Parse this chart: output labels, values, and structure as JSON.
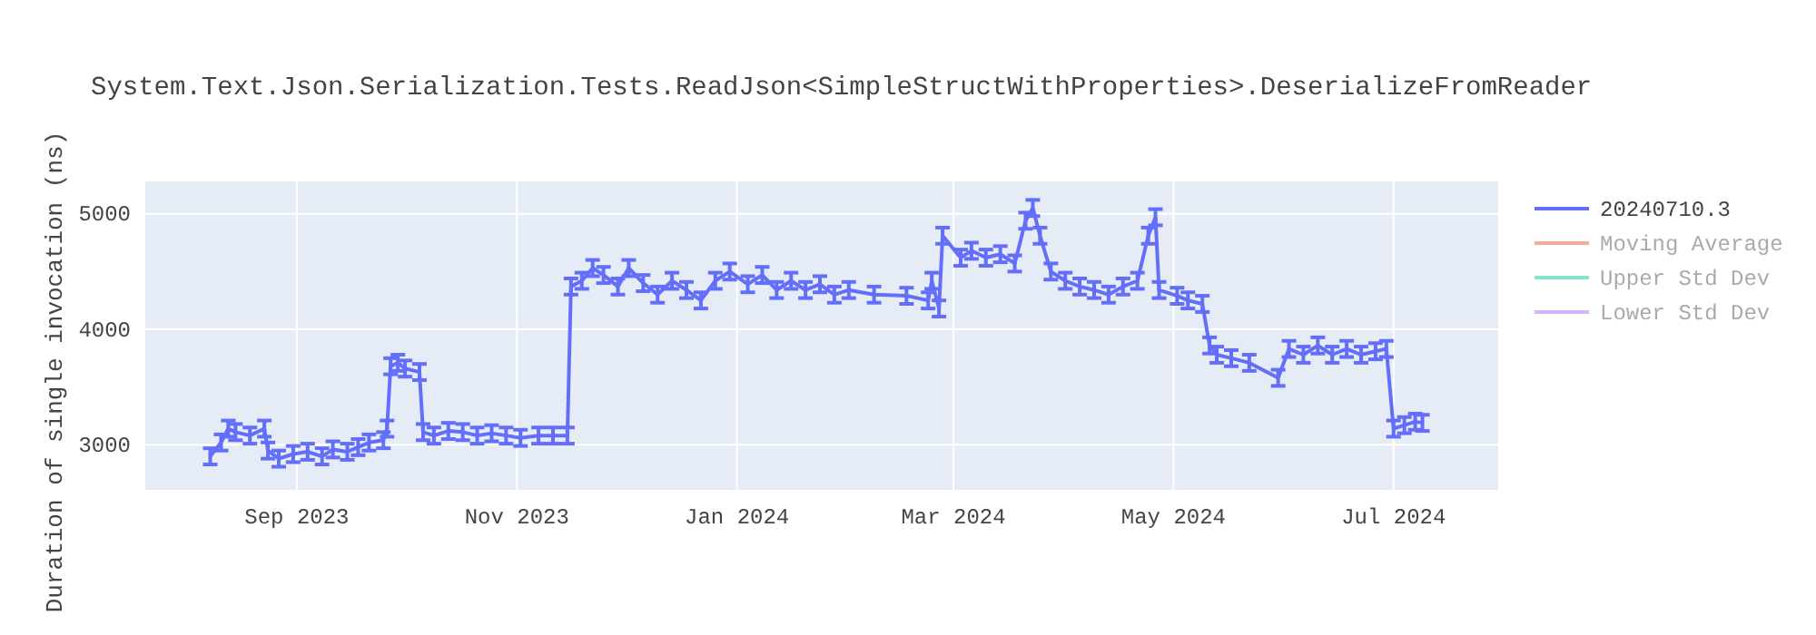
{
  "chart_data": {
    "type": "line",
    "title": "System.Text.Json.Serialization.Tests.ReadJson<SimpleStructWithProperties>.DeserializeFromReader",
    "ylabel": "Duration of single invocation (ns)",
    "x": [
      "2023-08-08",
      "2023-08-11",
      "2023-08-13",
      "2023-08-15",
      "2023-08-19",
      "2023-08-23",
      "2023-08-24",
      "2023-08-27",
      "2023-08-31",
      "2023-09-04",
      "2023-09-08",
      "2023-09-11",
      "2023-09-15",
      "2023-09-18",
      "2023-09-21",
      "2023-09-25",
      "2023-09-26",
      "2023-09-27",
      "2023-09-29",
      "2023-10-01",
      "2023-10-05",
      "2023-10-06",
      "2023-10-09",
      "2023-10-13",
      "2023-10-17",
      "2023-10-21",
      "2023-10-25",
      "2023-10-29",
      "2023-11-02",
      "2023-11-07",
      "2023-11-11",
      "2023-11-15",
      "2023-11-16",
      "2023-11-19",
      "2023-11-22",
      "2023-11-25",
      "2023-11-29",
      "2023-12-02",
      "2023-12-06",
      "2023-12-10",
      "2023-12-14",
      "2023-12-18",
      "2023-12-22",
      "2023-12-26",
      "2023-12-30",
      "2024-01-04",
      "2024-01-08",
      "2024-01-12",
      "2024-01-16",
      "2024-01-20",
      "2024-01-24",
      "2024-01-28",
      "2024-02-01",
      "2024-02-08",
      "2024-02-17",
      "2024-02-23",
      "2024-02-24",
      "2024-02-26",
      "2024-02-27",
      "2024-03-03",
      "2024-03-06",
      "2024-03-10",
      "2024-03-14",
      "2024-03-18",
      "2024-03-21",
      "2024-03-23",
      "2024-03-25",
      "2024-03-28",
      "2024-04-01",
      "2024-04-05",
      "2024-04-09",
      "2024-04-13",
      "2024-04-17",
      "2024-04-21",
      "2024-04-24",
      "2024-04-26",
      "2024-04-27",
      "2024-05-02",
      "2024-05-05",
      "2024-05-09",
      "2024-05-11",
      "2024-05-13",
      "2024-05-17",
      "2024-05-22",
      "2024-05-30",
      "2024-06-02",
      "2024-06-06",
      "2024-06-10",
      "2024-06-14",
      "2024-06-18",
      "2024-06-22",
      "2024-06-26",
      "2024-06-29",
      "2024-07-01",
      "2024-07-04",
      "2024-07-07",
      "2024-07-09"
    ],
    "series": [
      {
        "name": "20240710.3",
        "color": "#636efa",
        "values": [
          2900,
          3020,
          3140,
          3110,
          3080,
          3140,
          2950,
          2880,
          2920,
          2940,
          2900,
          2960,
          2940,
          2980,
          3020,
          3040,
          3140,
          3680,
          3710,
          3660,
          3630,
          3110,
          3080,
          3120,
          3110,
          3080,
          3100,
          3080,
          3060,
          3080,
          3080,
          3080,
          4370,
          4420,
          4530,
          4470,
          4370,
          4530,
          4400,
          4300,
          4420,
          4340,
          4250,
          4420,
          4500,
          4390,
          4470,
          4340,
          4420,
          4340,
          4390,
          4300,
          4340,
          4300,
          4290,
          4250,
          4420,
          4180,
          4810,
          4620,
          4680,
          4620,
          4650,
          4570,
          4940,
          5050,
          4810,
          4500,
          4420,
          4370,
          4340,
          4300,
          4370,
          4420,
          4810,
          4970,
          4340,
          4290,
          4250,
          4220,
          3860,
          3780,
          3750,
          3710,
          3580,
          3830,
          3780,
          3860,
          3780,
          3830,
          3780,
          3810,
          3830,
          3140,
          3170,
          3200,
          3190
        ],
        "errors": [
          70,
          70,
          70,
          70,
          70,
          70,
          70,
          70,
          70,
          70,
          70,
          70,
          70,
          70,
          70,
          70,
          70,
          70,
          70,
          70,
          70,
          70,
          70,
          70,
          70,
          70,
          70,
          70,
          70,
          70,
          70,
          70,
          70,
          70,
          70,
          70,
          70,
          70,
          70,
          70,
          70,
          70,
          70,
          70,
          70,
          70,
          70,
          70,
          70,
          70,
          70,
          70,
          70,
          70,
          70,
          70,
          70,
          70,
          70,
          70,
          70,
          70,
          70,
          70,
          70,
          70,
          70,
          70,
          70,
          70,
          70,
          70,
          70,
          70,
          70,
          70,
          70,
          70,
          70,
          70,
          70,
          70,
          70,
          70,
          70,
          70,
          70,
          70,
          70,
          70,
          70,
          70,
          70,
          70,
          70,
          70,
          70
        ]
      },
      {
        "name": "Moving Average",
        "color": "#f5aa9d",
        "values": [
          null,
          null,
          null,
          null,
          null,
          null,
          null,
          null,
          null,
          null,
          null,
          null,
          null,
          null,
          null,
          null,
          null,
          null,
          null,
          null,
          null,
          null,
          null,
          null,
          null,
          null,
          null,
          null,
          null,
          null,
          null,
          null,
          null,
          null,
          null,
          null,
          null,
          null,
          null,
          null,
          null,
          null,
          null,
          null,
          null,
          null,
          null,
          null,
          null,
          null,
          null,
          null,
          null,
          null,
          null,
          null,
          null,
          null,
          null,
          null,
          null,
          null,
          null,
          null,
          null,
          null,
          null,
          null,
          null,
          null,
          null,
          null,
          null,
          null,
          null,
          null,
          null,
          null,
          null,
          null,
          null,
          null,
          null,
          null,
          null,
          null,
          null,
          null,
          null,
          null,
          null,
          null,
          null,
          null,
          null,
          null,
          null
        ]
      },
      {
        "name": "Upper Std Dev",
        "color": "#80e5ca",
        "values": [
          null,
          null,
          null,
          null,
          null,
          null,
          null,
          null,
          null,
          null,
          null,
          null,
          null,
          null,
          null,
          null,
          null,
          null,
          null,
          null,
          null,
          null,
          null,
          null,
          null,
          null,
          null,
          null,
          null,
          null,
          null,
          null,
          null,
          null,
          null,
          null,
          null,
          null,
          null,
          null,
          null,
          null,
          null,
          null,
          null,
          null,
          null,
          null,
          null,
          null,
          null,
          null,
          null,
          null,
          null,
          null,
          null,
          null,
          null,
          null,
          null,
          null,
          null,
          null,
          null,
          null,
          null,
          null,
          null,
          null,
          null,
          null,
          null,
          null,
          null,
          null,
          null,
          null,
          null,
          null,
          null,
          null,
          null,
          null,
          null,
          null,
          null,
          null,
          null,
          null,
          null,
          null,
          null,
          null,
          null,
          null,
          null
        ]
      },
      {
        "name": "Lower Std Dev",
        "color": "#d5b1fc",
        "values": [
          null,
          null,
          null,
          null,
          null,
          null,
          null,
          null,
          null,
          null,
          null,
          null,
          null,
          null,
          null,
          null,
          null,
          null,
          null,
          null,
          null,
          null,
          null,
          null,
          null,
          null,
          null,
          null,
          null,
          null,
          null,
          null,
          null,
          null,
          null,
          null,
          null,
          null,
          null,
          null,
          null,
          null,
          null,
          null,
          null,
          null,
          null,
          null,
          null,
          null,
          null,
          null,
          null,
          null,
          null,
          null,
          null,
          null,
          null,
          null,
          null,
          null,
          null,
          null,
          null,
          null,
          null,
          null,
          null,
          null,
          null,
          null,
          null,
          null,
          null,
          null,
          null,
          null,
          null,
          null,
          null,
          null,
          null,
          null,
          null,
          null,
          null,
          null,
          null,
          null,
          null,
          null,
          null,
          null,
          null,
          null,
          null
        ]
      }
    ],
    "xlim": [
      "2023-07-21",
      "2024-07-30"
    ],
    "xticks": [
      {
        "value": "2023-09-01",
        "label": "Sep 2023"
      },
      {
        "value": "2023-11-01",
        "label": "Nov 2023"
      },
      {
        "value": "2024-01-01",
        "label": "Jan 2024"
      },
      {
        "value": "2024-03-01",
        "label": "Mar 2024"
      },
      {
        "value": "2024-05-01",
        "label": "May 2024"
      },
      {
        "value": "2024-07-01",
        "label": "Jul 2024"
      }
    ],
    "ylim": [
      2610,
      5280
    ],
    "yticks": [
      3000,
      4000,
      5000
    ],
    "grid": true,
    "legend": "right",
    "marker": "none",
    "line_style": "solid"
  }
}
